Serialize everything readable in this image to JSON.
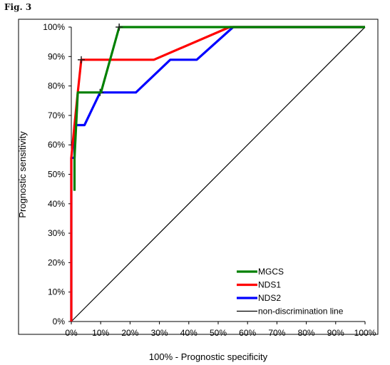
{
  "figure_label": "Fig. 3",
  "chart_data": {
    "type": "line",
    "title": "",
    "xlabel": "100% - Prognostic specificity",
    "ylabel": "Prognostic sensitivity",
    "xlim": [
      0,
      100
    ],
    "ylim": [
      0,
      100
    ],
    "x_ticks": [
      "0%",
      "10%",
      "20%",
      "30%",
      "40%",
      "50%",
      "60%",
      "70%",
      "80%",
      "90%",
      "100%"
    ],
    "y_ticks": [
      "0%",
      "10%",
      "20%",
      "30%",
      "40%",
      "50%",
      "60%",
      "70%",
      "80%",
      "90%",
      "100%"
    ],
    "grid": false,
    "legend_position": "bottom-right",
    "series": [
      {
        "name": "non-discrimination line",
        "color": "#000000",
        "points": [
          [
            0,
            0
          ],
          [
            100,
            100
          ]
        ]
      },
      {
        "name": "NDS2",
        "color": "#0000ff",
        "points": [
          [
            0,
            0
          ],
          [
            0,
            55.6
          ],
          [
            1.1,
            55.6
          ],
          [
            1.1,
            66.7
          ],
          [
            4.5,
            66.7
          ],
          [
            9.8,
            77.8
          ],
          [
            22,
            77.8
          ],
          [
            33.7,
            88.9
          ],
          [
            42.7,
            88.9
          ],
          [
            55.1,
            100
          ],
          [
            100,
            100
          ]
        ],
        "marker": [
          9.8,
          77.8
        ]
      },
      {
        "name": "NDS1",
        "color": "#ff0000",
        "points": [
          [
            0,
            0
          ],
          [
            0,
            55.6
          ],
          [
            1.1,
            66.7
          ],
          [
            2.2,
            77.8
          ],
          [
            3.4,
            88.9
          ],
          [
            28.1,
            88.9
          ],
          [
            53.9,
            100
          ],
          [
            100,
            100
          ]
        ],
        "marker": [
          3.4,
          88.9
        ]
      },
      {
        "name": "MGCS",
        "color": "#008000",
        "points": [
          [
            1.1,
            44.4
          ],
          [
            1.1,
            55.6
          ],
          [
            2.2,
            77.8
          ],
          [
            10.1,
            77.8
          ],
          [
            16.3,
            100
          ],
          [
            100,
            100
          ]
        ],
        "marker": [
          16.3,
          100
        ]
      }
    ],
    "legend_order": [
      "MGCS",
      "NDS1",
      "NDS2",
      "non-discrimination line"
    ]
  }
}
